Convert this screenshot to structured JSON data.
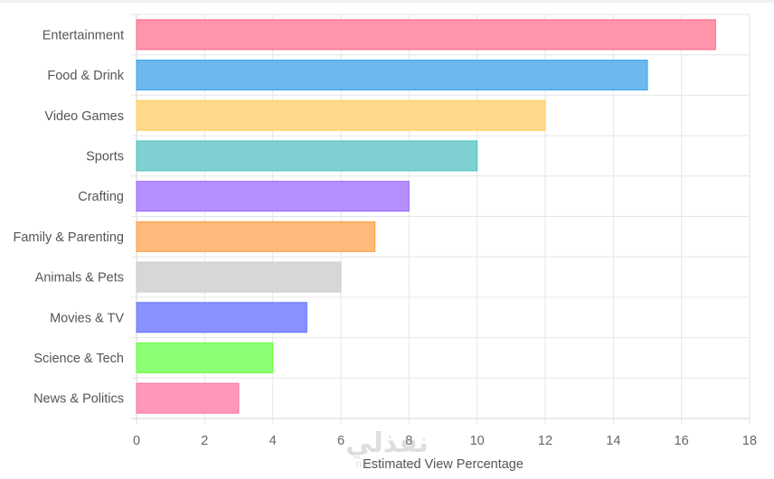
{
  "chart_data": {
    "type": "bar",
    "orientation": "horizontal",
    "categories": [
      "Entertainment",
      "Food & Drink",
      "Video Games",
      "Sports",
      "Crafting",
      "Family & Parenting",
      "Animals & Pets",
      "Movies & TV",
      "Science & Tech",
      "News & Politics"
    ],
    "values": [
      17,
      15,
      12,
      10,
      8,
      7,
      6,
      5,
      4,
      3
    ],
    "colors": [
      "#ff94ab",
      "#6db9ef",
      "#ffd98b",
      "#7fd1d1",
      "#b48fff",
      "#ffb97a",
      "#d7d7d8",
      "#8891ff",
      "#8cff74",
      "#ff97bd"
    ],
    "border_colors": [
      "#ff6384",
      "#36a2eb",
      "#ffce56",
      "#4bc0c0",
      "#9966ff",
      "#ff9f40",
      "#c9cbcf",
      "#6673ff",
      "#66ff3d",
      "#ff6fa0"
    ],
    "xlabel": "Estimated View Percentage",
    "ylabel": "",
    "xlim": [
      0,
      18
    ],
    "xticks": [
      0,
      2,
      4,
      6,
      8,
      10,
      12,
      14,
      16,
      18
    ],
    "grid": true,
    "legend": "none"
  },
  "watermark": {
    "main": "نفذلي",
    "sub": "nafezly.com"
  }
}
